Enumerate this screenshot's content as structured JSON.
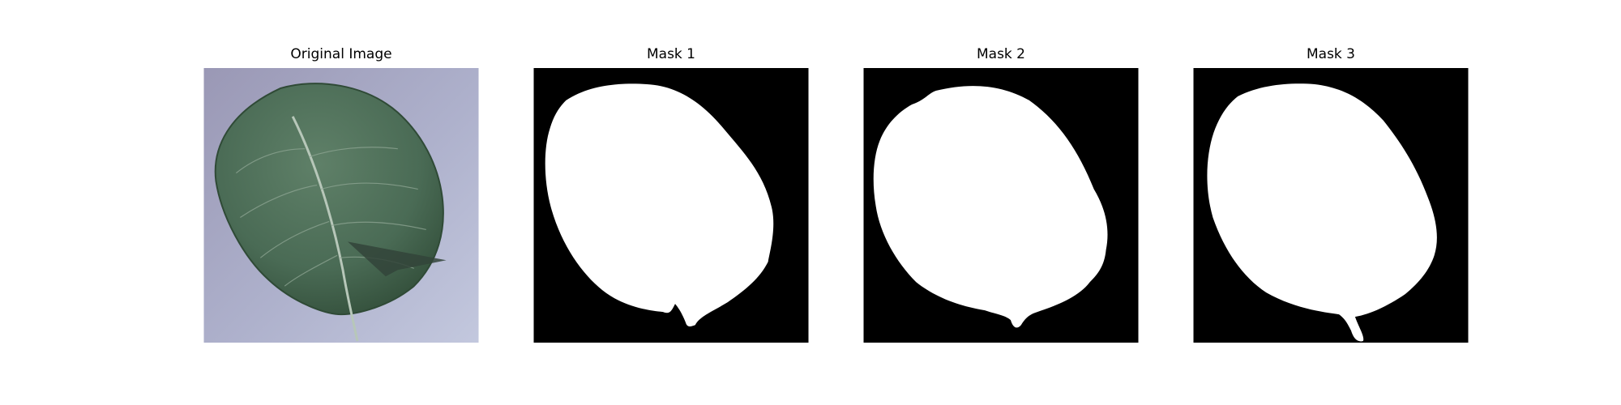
{
  "panels": [
    {
      "title": "Original Image",
      "kind": "photo"
    },
    {
      "title": "Mask 1",
      "kind": "mask"
    },
    {
      "title": "Mask 2",
      "kind": "mask"
    },
    {
      "title": "Mask 3",
      "kind": "mask"
    }
  ],
  "colors": {
    "background": "#ffffff",
    "mask_background": "#000000",
    "mask_foreground": "#ffffff",
    "photo_background": "#aeb1cc",
    "leaf": "#4a6b55",
    "leaf_edge": "#2f4a36",
    "leaf_vein": "#b7c7b9",
    "shadow": "#33443a"
  }
}
